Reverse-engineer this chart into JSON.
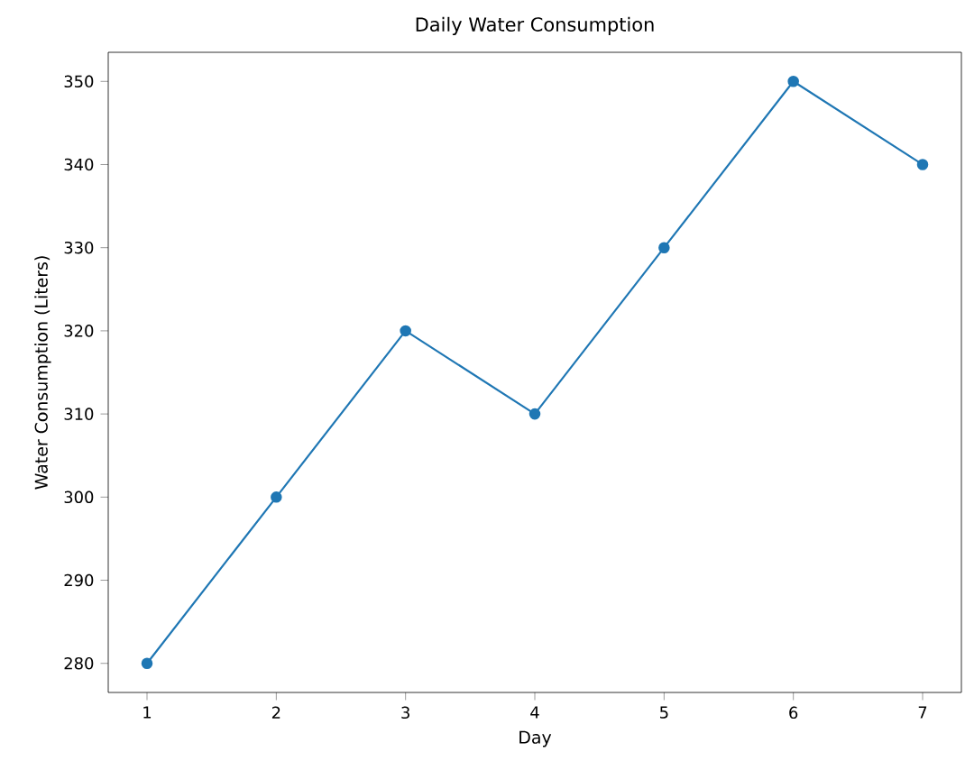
{
  "chart_data": {
    "type": "line",
    "title": "Daily Water Consumption",
    "xlabel": "Day",
    "ylabel": "Water Consumption (Liters)",
    "x": [
      1,
      2,
      3,
      4,
      5,
      6,
      7
    ],
    "series": [
      {
        "color": "#1f77b4",
        "values": [
          280,
          300,
          320,
          310,
          330,
          350,
          340
        ]
      }
    ],
    "xlim": [
      0.7,
      7.3
    ],
    "ylim": [
      276.5,
      353.5
    ],
    "xticks": [
      1,
      2,
      3,
      4,
      5,
      6,
      7
    ],
    "yticks": [
      280,
      290,
      300,
      310,
      320,
      330,
      340,
      350
    ],
    "marker": "circle",
    "line_style": "solid",
    "grid": false
  }
}
